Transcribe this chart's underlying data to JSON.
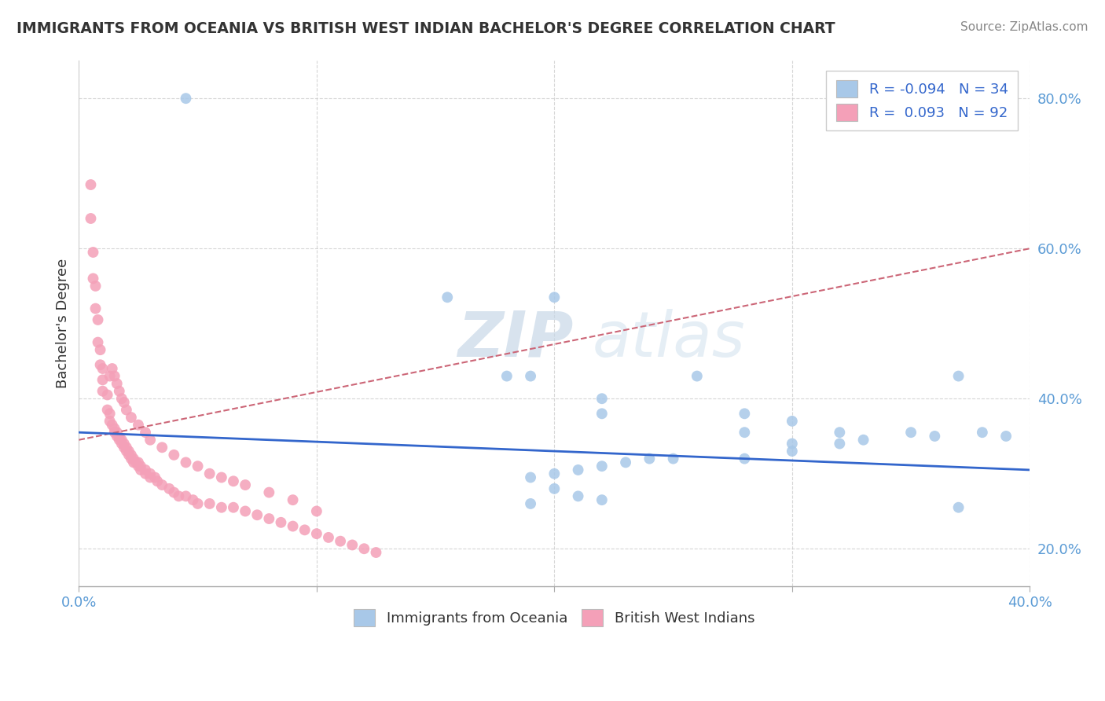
{
  "title": "IMMIGRANTS FROM OCEANIA VS BRITISH WEST INDIAN BACHELOR'S DEGREE CORRELATION CHART",
  "source": "Source: ZipAtlas.com",
  "ylabel": "Bachelor's Degree",
  "xlim": [
    0.0,
    0.4
  ],
  "ylim": [
    0.15,
    0.85
  ],
  "x_ticks": [
    0.0,
    0.1,
    0.2,
    0.3,
    0.4
  ],
  "x_tick_labels": [
    "0.0%",
    "",
    "",
    "",
    "40.0%"
  ],
  "y_ticks": [
    0.2,
    0.4,
    0.6,
    0.8
  ],
  "y_tick_labels": [
    "20.0%",
    "40.0%",
    "60.0%",
    "80.0%"
  ],
  "blue_color": "#a8c8e8",
  "pink_color": "#f4a0b8",
  "blue_line_color": "#3366cc",
  "pink_line_color": "#cc6677",
  "watermark_zip": "ZIP",
  "watermark_atlas": "atlas",
  "blue_scatter_x": [
    0.045,
    0.2,
    0.155,
    0.19,
    0.26,
    0.37,
    0.18,
    0.22,
    0.22,
    0.28,
    0.3,
    0.28,
    0.32,
    0.35,
    0.38,
    0.39,
    0.36,
    0.33,
    0.32,
    0.3,
    0.3,
    0.28,
    0.25,
    0.24,
    0.23,
    0.22,
    0.21,
    0.2,
    0.19,
    0.2,
    0.21,
    0.22,
    0.19,
    0.37
  ],
  "blue_scatter_y": [
    0.8,
    0.535,
    0.535,
    0.43,
    0.43,
    0.43,
    0.43,
    0.4,
    0.38,
    0.38,
    0.37,
    0.355,
    0.355,
    0.355,
    0.355,
    0.35,
    0.35,
    0.345,
    0.34,
    0.34,
    0.33,
    0.32,
    0.32,
    0.32,
    0.315,
    0.31,
    0.305,
    0.3,
    0.295,
    0.28,
    0.27,
    0.265,
    0.26,
    0.255
  ],
  "pink_scatter_x": [
    0.005,
    0.005,
    0.006,
    0.006,
    0.007,
    0.007,
    0.008,
    0.008,
    0.009,
    0.009,
    0.01,
    0.01,
    0.01,
    0.012,
    0.012,
    0.013,
    0.013,
    0.014,
    0.015,
    0.015,
    0.016,
    0.016,
    0.017,
    0.017,
    0.018,
    0.018,
    0.019,
    0.019,
    0.02,
    0.02,
    0.021,
    0.021,
    0.022,
    0.022,
    0.023,
    0.023,
    0.024,
    0.025,
    0.025,
    0.026,
    0.026,
    0.028,
    0.028,
    0.03,
    0.03,
    0.032,
    0.033,
    0.035,
    0.038,
    0.04,
    0.042,
    0.045,
    0.048,
    0.05,
    0.055,
    0.06,
    0.065,
    0.07,
    0.075,
    0.08,
    0.085,
    0.09,
    0.095,
    0.1,
    0.105,
    0.11,
    0.115,
    0.12,
    0.125,
    0.013,
    0.014,
    0.015,
    0.016,
    0.017,
    0.018,
    0.019,
    0.02,
    0.022,
    0.025,
    0.028,
    0.03,
    0.035,
    0.04,
    0.045,
    0.05,
    0.055,
    0.06,
    0.065,
    0.07,
    0.08,
    0.09,
    0.1
  ],
  "pink_scatter_y": [
    0.685,
    0.64,
    0.595,
    0.56,
    0.55,
    0.52,
    0.505,
    0.475,
    0.465,
    0.445,
    0.44,
    0.425,
    0.41,
    0.405,
    0.385,
    0.38,
    0.37,
    0.365,
    0.36,
    0.355,
    0.355,
    0.35,
    0.348,
    0.345,
    0.345,
    0.34,
    0.34,
    0.335,
    0.335,
    0.33,
    0.33,
    0.325,
    0.325,
    0.32,
    0.32,
    0.315,
    0.315,
    0.315,
    0.31,
    0.31,
    0.305,
    0.305,
    0.3,
    0.3,
    0.295,
    0.295,
    0.29,
    0.285,
    0.28,
    0.275,
    0.27,
    0.27,
    0.265,
    0.26,
    0.26,
    0.255,
    0.255,
    0.25,
    0.245,
    0.24,
    0.235,
    0.23,
    0.225,
    0.22,
    0.215,
    0.21,
    0.205,
    0.2,
    0.195,
    0.43,
    0.44,
    0.43,
    0.42,
    0.41,
    0.4,
    0.395,
    0.385,
    0.375,
    0.365,
    0.355,
    0.345,
    0.335,
    0.325,
    0.315,
    0.31,
    0.3,
    0.295,
    0.29,
    0.285,
    0.275,
    0.265,
    0.25
  ],
  "blue_trend_x": [
    0.0,
    0.4
  ],
  "blue_trend_y": [
    0.355,
    0.305
  ],
  "pink_trend_x": [
    0.0,
    0.4
  ],
  "pink_trend_y": [
    0.345,
    0.6
  ]
}
